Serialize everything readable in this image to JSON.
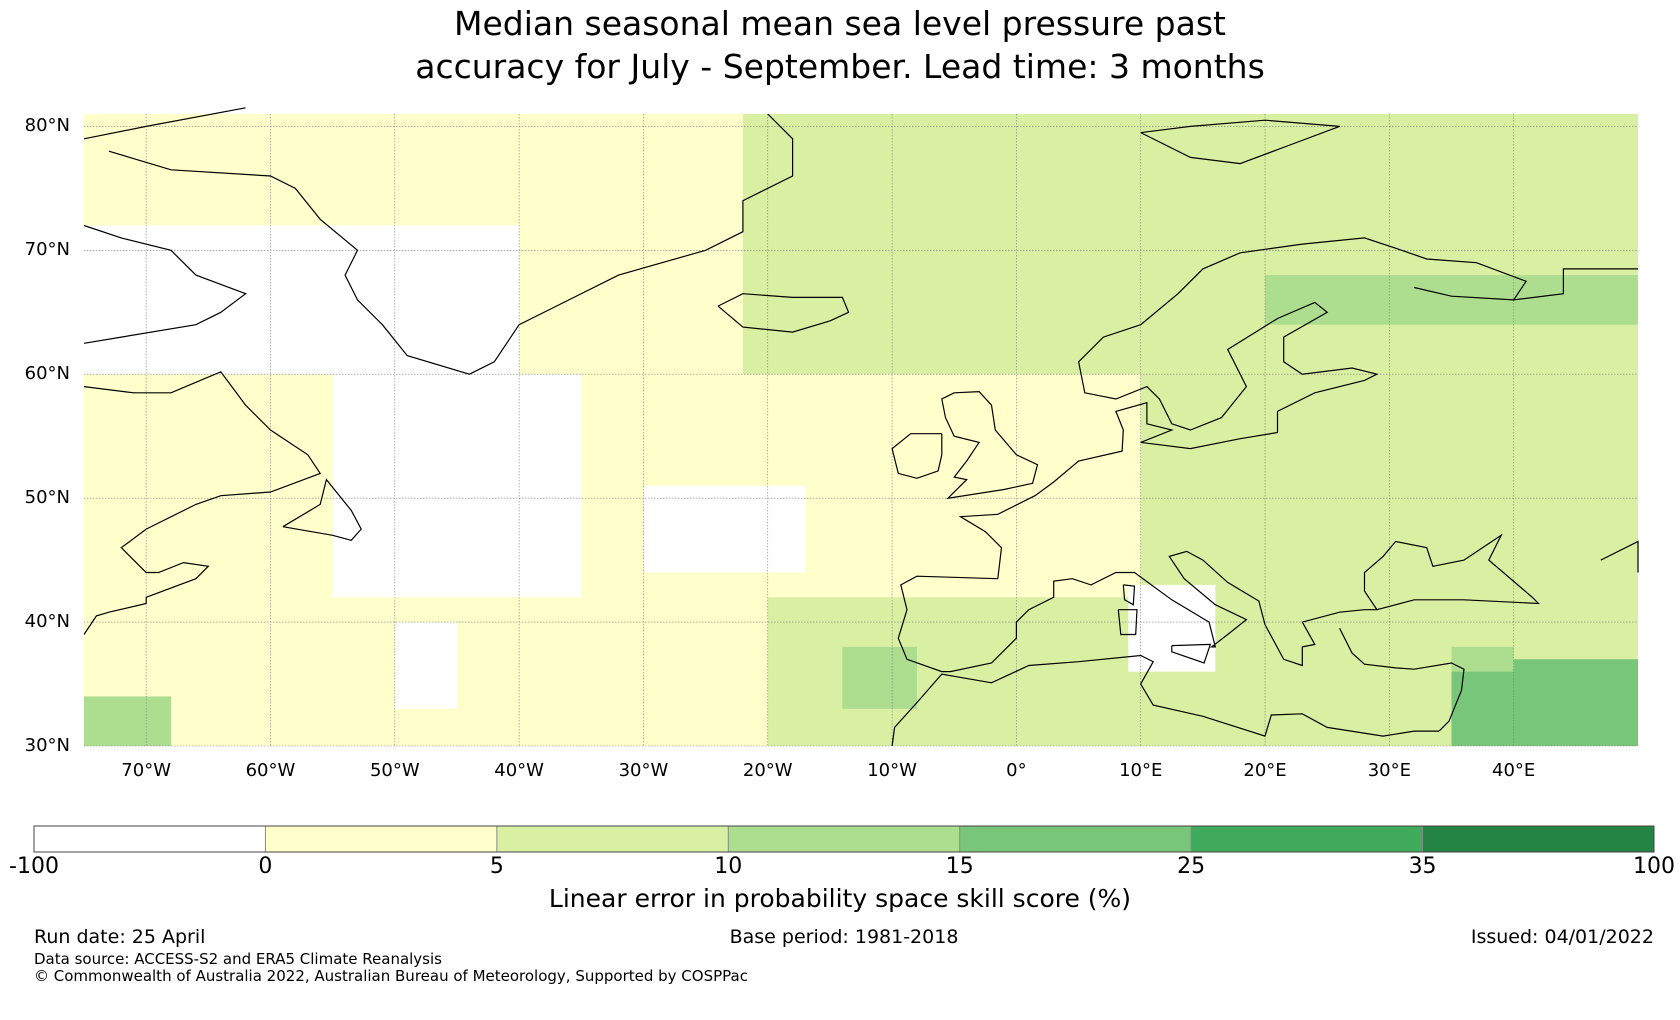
{
  "title": {
    "line1": "Median seasonal mean sea level pressure past",
    "line2": "accuracy for July - September. Lead time: 3 months"
  },
  "map": {
    "lon_range": [
      -75,
      50
    ],
    "lat_range": [
      30,
      81
    ],
    "lat_ticks": [
      {
        "value": 80,
        "label": "80°N"
      },
      {
        "value": 70,
        "label": "70°N"
      },
      {
        "value": 60,
        "label": "60°N"
      },
      {
        "value": 50,
        "label": "50°N"
      },
      {
        "value": 40,
        "label": "40°N"
      },
      {
        "value": 30,
        "label": "30°N"
      }
    ],
    "lon_ticks": [
      {
        "value": -70,
        "label": "70°W"
      },
      {
        "value": -60,
        "label": "60°W"
      },
      {
        "value": -50,
        "label": "50°W"
      },
      {
        "value": -40,
        "label": "40°W"
      },
      {
        "value": -30,
        "label": "30°W"
      },
      {
        "value": -20,
        "label": "20°W"
      },
      {
        "value": -10,
        "label": "10°W"
      },
      {
        "value": 0,
        "label": "0°"
      },
      {
        "value": 10,
        "label": "10°E"
      },
      {
        "value": 20,
        "label": "20°E"
      },
      {
        "value": 30,
        "label": "30°E"
      },
      {
        "value": 40,
        "label": "40°E"
      }
    ],
    "skill_regions": [
      {
        "category": 2,
        "lon": [
          -22,
          50
        ],
        "lat": [
          60,
          81
        ]
      },
      {
        "category": 1,
        "lon": [
          -75,
          -22
        ],
        "lat": [
          55,
          81
        ]
      },
      {
        "category": 0,
        "lon": [
          -75,
          -40
        ],
        "lat": [
          60,
          72
        ]
      },
      {
        "category": 0,
        "lon": [
          -55,
          -35
        ],
        "lat": [
          42,
          60
        ]
      },
      {
        "category": 1,
        "lon": [
          -35,
          10
        ],
        "lat": [
          42,
          60
        ]
      },
      {
        "category": 2,
        "lon": [
          10,
          50
        ],
        "lat": [
          30,
          60
        ]
      },
      {
        "category": 1,
        "lon": [
          -75,
          -20
        ],
        "lat": [
          30,
          42
        ]
      },
      {
        "category": 2,
        "lon": [
          -20,
          10
        ],
        "lat": [
          30,
          42
        ]
      },
      {
        "category": 0,
        "lon": [
          9,
          16
        ],
        "lat": [
          36,
          43
        ]
      },
      {
        "category": 3,
        "lon": [
          -14,
          -8
        ],
        "lat": [
          33,
          38
        ]
      },
      {
        "category": 4,
        "lon": [
          35,
          50
        ],
        "lat": [
          30,
          37
        ]
      },
      {
        "category": 3,
        "lon": [
          35,
          40
        ],
        "lat": [
          36,
          38
        ]
      },
      {
        "category": 3,
        "lon": [
          -75,
          -68
        ],
        "lat": [
          30,
          34
        ]
      },
      {
        "category": 3,
        "lon": [
          20,
          50
        ],
        "lat": [
          64,
          68
        ]
      },
      {
        "category": 0,
        "lon": [
          -30,
          -17
        ],
        "lat": [
          44,
          51
        ]
      },
      {
        "category": 0,
        "lon": [
          -50,
          -45
        ],
        "lat": [
          33,
          40
        ]
      }
    ],
    "coastlines": "simplified"
  },
  "colorbar": {
    "colors": [
      "#ffffff",
      "#ffffcc",
      "#d9f0a3",
      "#addd8e",
      "#78c679",
      "#41ab5d",
      "#238443"
    ],
    "tick_labels": [
      "-100",
      "0",
      "5",
      "10",
      "15",
      "25",
      "35",
      "100"
    ],
    "label": "Linear error in probability space skill score (%)"
  },
  "footer": {
    "run_date": "Run date: 25 April",
    "base_period": "Base period: 1981-2018",
    "issued": "Issued: 04/01/2022",
    "data_source": "Data source: ACCESS-S2 and ERA5 Climate Reanalysis",
    "copyright": "© Commonwealth of Australia 2022, Australian Bureau of Meteorology, Supported by COSPPac"
  }
}
